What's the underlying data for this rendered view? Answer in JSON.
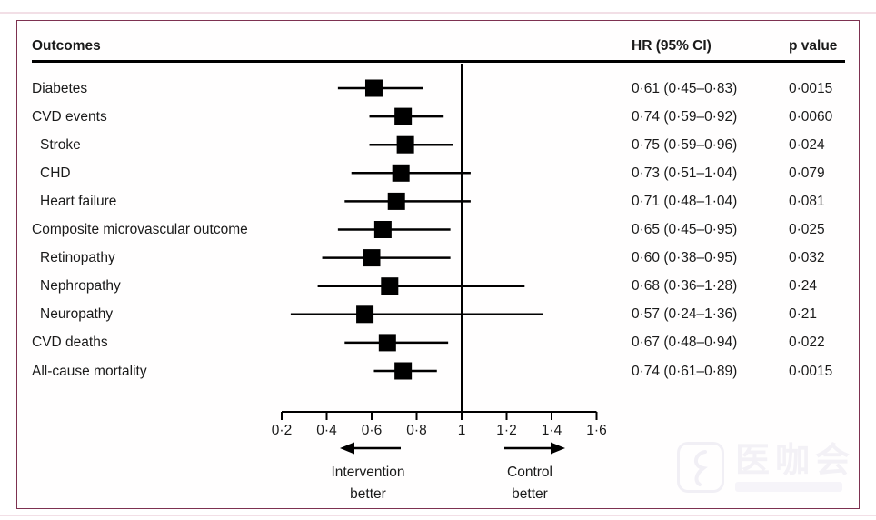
{
  "chart_data": {
    "type": "forest",
    "title": "",
    "xlabel": "",
    "ylabel": "",
    "columns": {
      "outcome": "Outcomes",
      "hr_ci": "HR (95% CI)",
      "p": "p value"
    },
    "rows": [
      {
        "label": "Diabetes",
        "indent": 0,
        "hr": 0.61,
        "lo": 0.45,
        "hi": 0.83,
        "hr_ci_text": "0·61 (0·45–0·83)",
        "p_text": "0·0015"
      },
      {
        "label": "CVD events",
        "indent": 0,
        "hr": 0.74,
        "lo": 0.59,
        "hi": 0.92,
        "hr_ci_text": "0·74 (0·59–0·92)",
        "p_text": "0·0060"
      },
      {
        "label": "Stroke",
        "indent": 1,
        "hr": 0.75,
        "lo": 0.59,
        "hi": 0.96,
        "hr_ci_text": "0·75 (0·59–0·96)",
        "p_text": "0·024"
      },
      {
        "label": "CHD",
        "indent": 1,
        "hr": 0.73,
        "lo": 0.51,
        "hi": 1.04,
        "hr_ci_text": "0·73 (0·51–1·04)",
        "p_text": "0·079"
      },
      {
        "label": "Heart failure",
        "indent": 1,
        "hr": 0.71,
        "lo": 0.48,
        "hi": 1.04,
        "hr_ci_text": "0·71 (0·48–1·04)",
        "p_text": "0·081"
      },
      {
        "label": "Composite microvascular outcome",
        "indent": 0,
        "hr": 0.65,
        "lo": 0.45,
        "hi": 0.95,
        "hr_ci_text": "0·65 (0·45–0·95)",
        "p_text": "0·025"
      },
      {
        "label": "Retinopathy",
        "indent": 1,
        "hr": 0.6,
        "lo": 0.38,
        "hi": 0.95,
        "hr_ci_text": "0·60 (0·38–0·95)",
        "p_text": "0·032"
      },
      {
        "label": "Nephropathy",
        "indent": 1,
        "hr": 0.68,
        "lo": 0.36,
        "hi": 1.28,
        "hr_ci_text": "0·68 (0·36–1·28)",
        "p_text": "0·24"
      },
      {
        "label": "Neuropathy",
        "indent": 1,
        "hr": 0.57,
        "lo": 0.24,
        "hi": 1.36,
        "hr_ci_text": "0·57 (0·24–1·36)",
        "p_text": "0·21"
      },
      {
        "label": "CVD deaths",
        "indent": 0,
        "hr": 0.67,
        "lo": 0.48,
        "hi": 0.94,
        "hr_ci_text": "0·67 (0·48–0·94)",
        "p_text": "0·022"
      },
      {
        "label": "All-cause mortality",
        "indent": 0,
        "hr": 0.74,
        "lo": 0.61,
        "hi": 0.89,
        "hr_ci_text": "0·74 (0·61–0·89)",
        "p_text": "0·0015"
      }
    ],
    "axis": {
      "xlim": [
        0.2,
        1.6
      ],
      "ticks": [
        0.2,
        0.4,
        0.6,
        0.8,
        1.0,
        1.2,
        1.4,
        1.6
      ],
      "tick_labels": [
        "0·2",
        "0·4",
        "0·6",
        "0·8",
        "1",
        "1·2",
        "1·4",
        "1·6"
      ],
      "reference_line": 1.0,
      "grid": false
    },
    "direction_labels": {
      "left": [
        "Intervention",
        "better"
      ],
      "right": [
        "Control",
        "better"
      ]
    },
    "marker_color": "#000000",
    "line_color": "#000000"
  },
  "colors": {
    "frame_border": "#7d3150",
    "text": "#1a1a1a",
    "plot": "#000000"
  },
  "watermark": {
    "text": "医咖会"
  }
}
